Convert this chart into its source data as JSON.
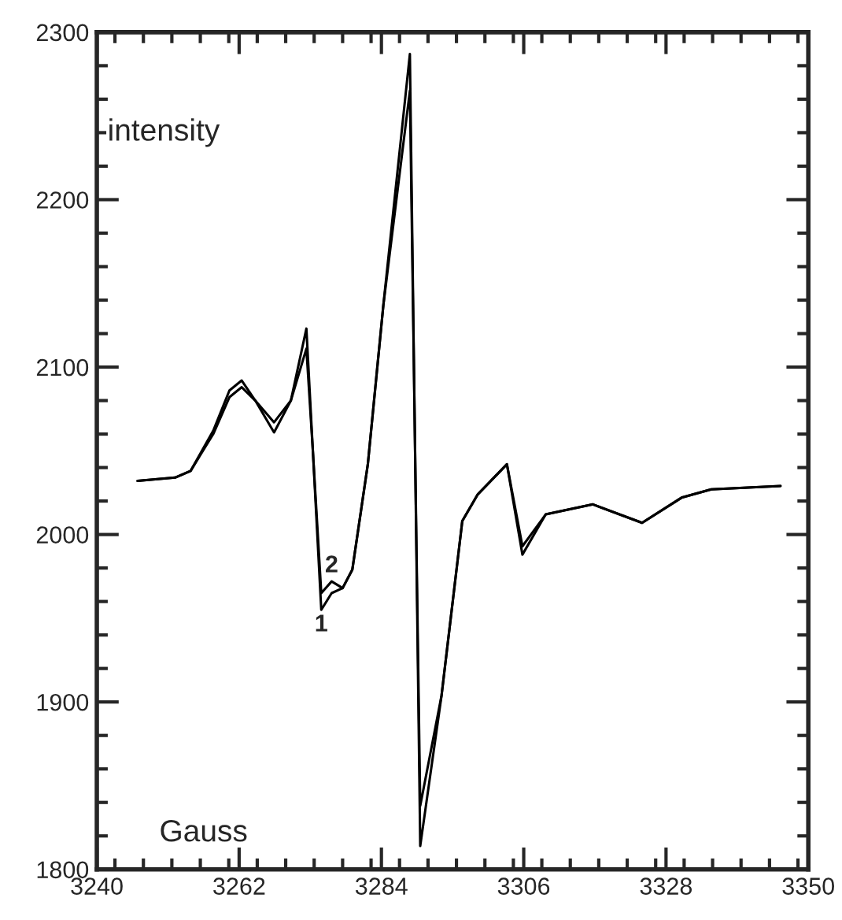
{
  "chart_data": {
    "type": "line",
    "xlabel": "Gauss",
    "ylabel": "intensity",
    "x": [
      3246.3,
      3252.1,
      3254.5,
      3258.0,
      3260.5,
      3262.4,
      3264.5,
      3267.4,
      3270.0,
      3272.4,
      3273.4,
      3274.7,
      3276.3,
      3278.0,
      3279.5,
      3281.9,
      3284.3,
      3288.4,
      3290.0,
      3293.3,
      3296.5,
      3298.9,
      3303.4,
      3305.8,
      3309.4,
      3316.7,
      3324.3,
      3330.4,
      3335.0,
      3345.7
    ],
    "series": [
      {
        "color": "#000000",
        "values": [
          2032,
          2034,
          2038,
          2062,
          2086,
          2092,
          2080,
          2061,
          2080,
          2123,
          2050,
          1955,
          1965,
          1968,
          1979,
          2042,
          2137,
          2287,
          1814,
          1904,
          2008,
          2024,
          2042,
          1988,
          2012,
          2018,
          2007,
          2022,
          2027,
          2029
        ]
      },
      {
        "color": "#000000",
        "values": [
          2032,
          2034,
          2038,
          2060,
          2082,
          2088,
          2080,
          2067,
          2080,
          2111,
          2050,
          1965,
          1972,
          1968,
          1979,
          2042,
          2137,
          2265,
          1838,
          1904,
          2008,
          2024,
          2042,
          1993,
          2012,
          2018,
          2007,
          2022,
          2027,
          2029
        ]
      }
    ],
    "annotations": [
      {
        "text": "1",
        "x": 3274.7,
        "y": 1955
      },
      {
        "text": "2",
        "x": 3276.3,
        "y": 1972
      }
    ],
    "xlim": [
      3240,
      3350
    ],
    "xticks": [
      3240,
      3262,
      3284,
      3306,
      3328,
      3350
    ],
    "ylim": [
      1800,
      2300
    ],
    "yticks": [
      1800,
      1900,
      2000,
      2100,
      2200,
      2300
    ],
    "grid": false,
    "legend": false,
    "line_style": "solid",
    "marker": "none"
  }
}
